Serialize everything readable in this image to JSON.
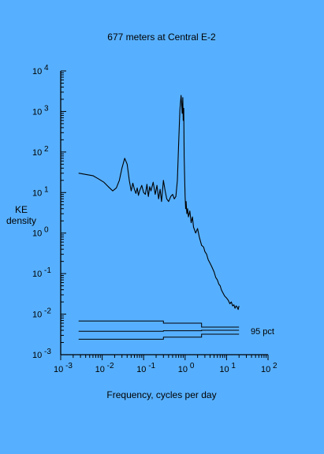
{
  "colors": {
    "background": "#57b0ff",
    "ink": "#000000"
  },
  "chart_data": {
    "type": "line",
    "title": "677 meters at Central E-2",
    "xlabel": "Frequency, cycles per day",
    "ylabel": [
      "KE",
      "density"
    ],
    "x_scale": "log",
    "y_scale": "log",
    "xlim": [
      0.001,
      100
    ],
    "ylim": [
      0.001,
      10000
    ],
    "x_tick_labels": [
      {
        "base": "10",
        "exp": "-3"
      },
      {
        "base": "10",
        "exp": "-2"
      },
      {
        "base": "10",
        "exp": "-1"
      },
      {
        "base": "10",
        "exp": "0"
      },
      {
        "base": "10",
        "exp": "1"
      },
      {
        "base": "10",
        "exp": "2"
      }
    ],
    "y_tick_labels": [
      {
        "base": "10",
        "exp": "4"
      },
      {
        "base": "10",
        "exp": "3"
      },
      {
        "base": "10",
        "exp": "2"
      },
      {
        "base": "10",
        "exp": "1"
      },
      {
        "base": "10",
        "exp": "0"
      },
      {
        "base": "10",
        "exp": "-1"
      },
      {
        "base": "10",
        "exp": "-2"
      },
      {
        "base": "10",
        "exp": "-3"
      }
    ],
    "grid": false,
    "spectrum": {
      "x": [
        0.0027,
        0.004,
        0.006,
        0.008,
        0.011,
        0.014,
        0.018,
        0.022,
        0.026,
        0.03,
        0.035,
        0.04,
        0.045,
        0.05,
        0.055,
        0.06,
        0.065,
        0.07,
        0.075,
        0.08,
        0.09,
        0.1,
        0.11,
        0.12,
        0.13,
        0.14,
        0.15,
        0.17,
        0.19,
        0.21,
        0.23,
        0.25,
        0.27,
        0.3,
        0.33,
        0.36,
        0.4,
        0.45,
        0.5,
        0.55,
        0.6,
        0.65,
        0.7,
        0.75,
        0.8,
        0.85,
        0.88,
        0.9,
        0.93,
        0.95,
        0.97,
        1.0,
        1.03,
        1.06,
        1.1,
        1.15,
        1.2,
        1.3,
        1.4,
        1.5,
        1.6,
        1.8,
        2.0,
        2.2,
        2.5,
        2.8,
        3.0,
        3.3,
        3.6,
        4.0,
        4.5,
        5.0,
        5.5,
        6.0,
        6.5,
        7.0,
        7.5,
        8.0,
        9.0,
        10.0,
        11.0,
        12.0,
        13.0,
        14.0,
        15.0,
        16.0,
        17.0,
        18.0,
        19.0,
        20.0
      ],
      "y": [
        30,
        28,
        26,
        22,
        18,
        14,
        11,
        13,
        20,
        40,
        70,
        50,
        20,
        11,
        17,
        12,
        9.5,
        13,
        8.5,
        11,
        15,
        10,
        9,
        16,
        8,
        14,
        11,
        18,
        9,
        15,
        7,
        12,
        6,
        20,
        11,
        7,
        6,
        8,
        9,
        7,
        8,
        20,
        180,
        1100,
        2500,
        900,
        2200,
        600,
        1200,
        80,
        30,
        8,
        4,
        6,
        3,
        4,
        2.5,
        3.5,
        1.8,
        2.5,
        1.4,
        1.0,
        1.3,
        0.8,
        0.5,
        0.45,
        0.35,
        0.3,
        0.22,
        0.18,
        0.14,
        0.11,
        0.08,
        0.07,
        0.055,
        0.05,
        0.04,
        0.035,
        0.028,
        0.025,
        0.022,
        0.018,
        0.02,
        0.016,
        0.017,
        0.014,
        0.016,
        0.015,
        0.013,
        0.016
      ]
    },
    "confidence_interval": {
      "label": "95 pct",
      "upper": {
        "x": [
          0.0027,
          0.3,
          0.3,
          2.5,
          2.5,
          20
        ],
        "y": [
          0.0068,
          0.0068,
          0.006,
          0.006,
          0.0048,
          0.0048
        ]
      },
      "middle": {
        "x": [
          0.0027,
          0.3,
          0.3,
          2.5,
          2.5,
          20
        ],
        "y": [
          0.0038,
          0.0038,
          0.0039,
          0.0039,
          0.004,
          0.004
        ]
      },
      "lower": {
        "x": [
          0.0027,
          0.3,
          0.3,
          2.5,
          2.5,
          20
        ],
        "y": [
          0.0024,
          0.0024,
          0.0027,
          0.0027,
          0.0032,
          0.0032
        ]
      }
    }
  }
}
